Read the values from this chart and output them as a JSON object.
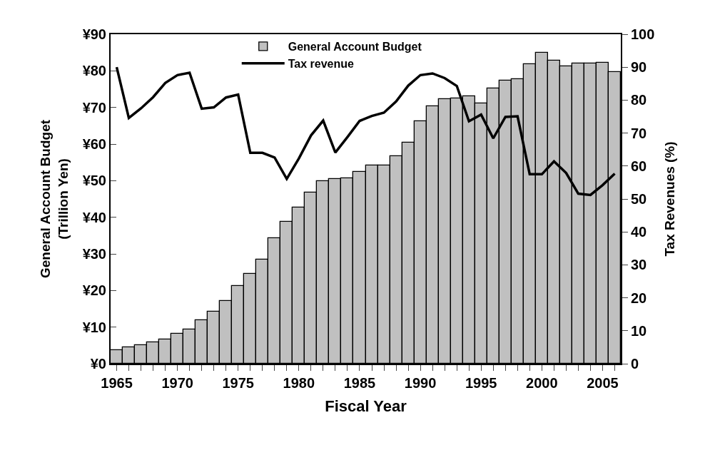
{
  "chart_data": {
    "type": "bar",
    "xlabel": "Fiscal Year",
    "ylabel": "General Account Budget\n(Trillion Yen)",
    "y2label": "Tax Revenues (%)",
    "x": [
      1965,
      1966,
      1967,
      1968,
      1969,
      1970,
      1971,
      1972,
      1973,
      1974,
      1975,
      1976,
      1977,
      1978,
      1979,
      1980,
      1981,
      1982,
      1983,
      1984,
      1985,
      1986,
      1987,
      1988,
      1989,
      1990,
      1991,
      1992,
      1993,
      1994,
      1995,
      1996,
      1997,
      1998,
      1999,
      2000,
      2001,
      2002,
      2003,
      2004,
      2005,
      2006
    ],
    "series": [
      {
        "name": "General Account Budget",
        "color": "#c0c0c0",
        "values": [
          3.7,
          4.4,
          5.0,
          5.8,
          6.7,
          8.2,
          9.4,
          11.9,
          14.3,
          17.1,
          21.3,
          24.5,
          28.5,
          34.3,
          38.8,
          42.6,
          46.8,
          49.8,
          50.4,
          50.6,
          52.5,
          54.1,
          54.1,
          56.7,
          60.4,
          66.2,
          70.3,
          72.2,
          72.4,
          73.1,
          71.1,
          75.1,
          77.4,
          77.7,
          81.9,
          85.0,
          82.7,
          81.2,
          82.0,
          82.1,
          82.2,
          79.7
        ]
      },
      {
        "name": "Tax revenue",
        "type": "line",
        "axis": "y2",
        "color": "#000000",
        "values": [
          90,
          74.6,
          77.5,
          80.9,
          85.2,
          87.6,
          88.3,
          77.4,
          77.8,
          80.8,
          81.7,
          64,
          64,
          62.6,
          56.1,
          62.3,
          69.3,
          73.8,
          64.1,
          68.8,
          73.7,
          75.2,
          76.2,
          79.6,
          84.4,
          87.6,
          88.1,
          86.7,
          84.3,
          73.6,
          75.6,
          68.4,
          74.9,
          75.1,
          57.5,
          57.5,
          61.4,
          57.9,
          51.6,
          51.2,
          54.2,
          57.7
        ]
      }
    ],
    "xlim": [
      1964.5,
      2006.5
    ],
    "xticks": [
      1965,
      {
        "value": 1966,
        "label": null
      },
      {
        "value": 1967,
        "label": null
      },
      {
        "value": 1968,
        "label": null
      },
      {
        "value": 1969,
        "label": null
      },
      1970,
      {
        "value": 1971,
        "label": null
      },
      {
        "value": 1972,
        "label": null
      },
      {
        "value": 1973,
        "label": null
      },
      {
        "value": 1974,
        "label": null
      },
      1975,
      {
        "value": 1976,
        "label": null
      },
      {
        "value": 1977,
        "label": null
      },
      {
        "value": 1978,
        "label": null
      },
      {
        "value": 1979,
        "label": null
      },
      1980,
      {
        "value": 1981,
        "label": null
      },
      {
        "value": 1982,
        "label": null
      },
      {
        "value": 1983,
        "label": null
      },
      {
        "value": 1984,
        "label": null
      },
      1985,
      {
        "value": 1986,
        "label": null
      },
      {
        "value": 1987,
        "label": null
      },
      {
        "value": 1988,
        "label": null
      },
      {
        "value": 1989,
        "label": null
      },
      1990,
      {
        "value": 1991,
        "label": null
      },
      {
        "value": 1992,
        "label": null
      },
      {
        "value": 1993,
        "label": null
      },
      {
        "value": 1994,
        "label": null
      },
      1995,
      {
        "value": 1996,
        "label": null
      },
      {
        "value": 1997,
        "label": null
      },
      {
        "value": 1998,
        "label": null
      },
      {
        "value": 1999,
        "label": null
      },
      2000,
      {
        "value": 2001,
        "label": null
      },
      {
        "value": 2002,
        "label": null
      },
      {
        "value": 2003,
        "label": null
      },
      {
        "value": 2004,
        "label": null
      },
      2005,
      {
        "value": 2006,
        "label": null
      }
    ],
    "ylim": [
      0,
      90
    ],
    "yticks": [
      {
        "value": 0,
        "label": "¥0"
      },
      {
        "value": 10,
        "label": "¥10"
      },
      {
        "value": 20,
        "label": "¥20"
      },
      {
        "value": 30,
        "label": "¥30"
      },
      {
        "value": 40,
        "label": "¥40"
      },
      {
        "value": 50,
        "label": "¥50"
      },
      {
        "value": 60,
        "label": "¥60"
      },
      {
        "value": 70,
        "label": "¥70"
      },
      {
        "value": 80,
        "label": "¥80"
      },
      {
        "value": 90,
        "label": "¥90"
      }
    ],
    "y2lim": [
      0,
      100
    ],
    "y2ticks": [
      0,
      10,
      20,
      30,
      40,
      50,
      60,
      70,
      80,
      90,
      100
    ],
    "legend": "top",
    "marker": "none",
    "line_style": "solid"
  }
}
